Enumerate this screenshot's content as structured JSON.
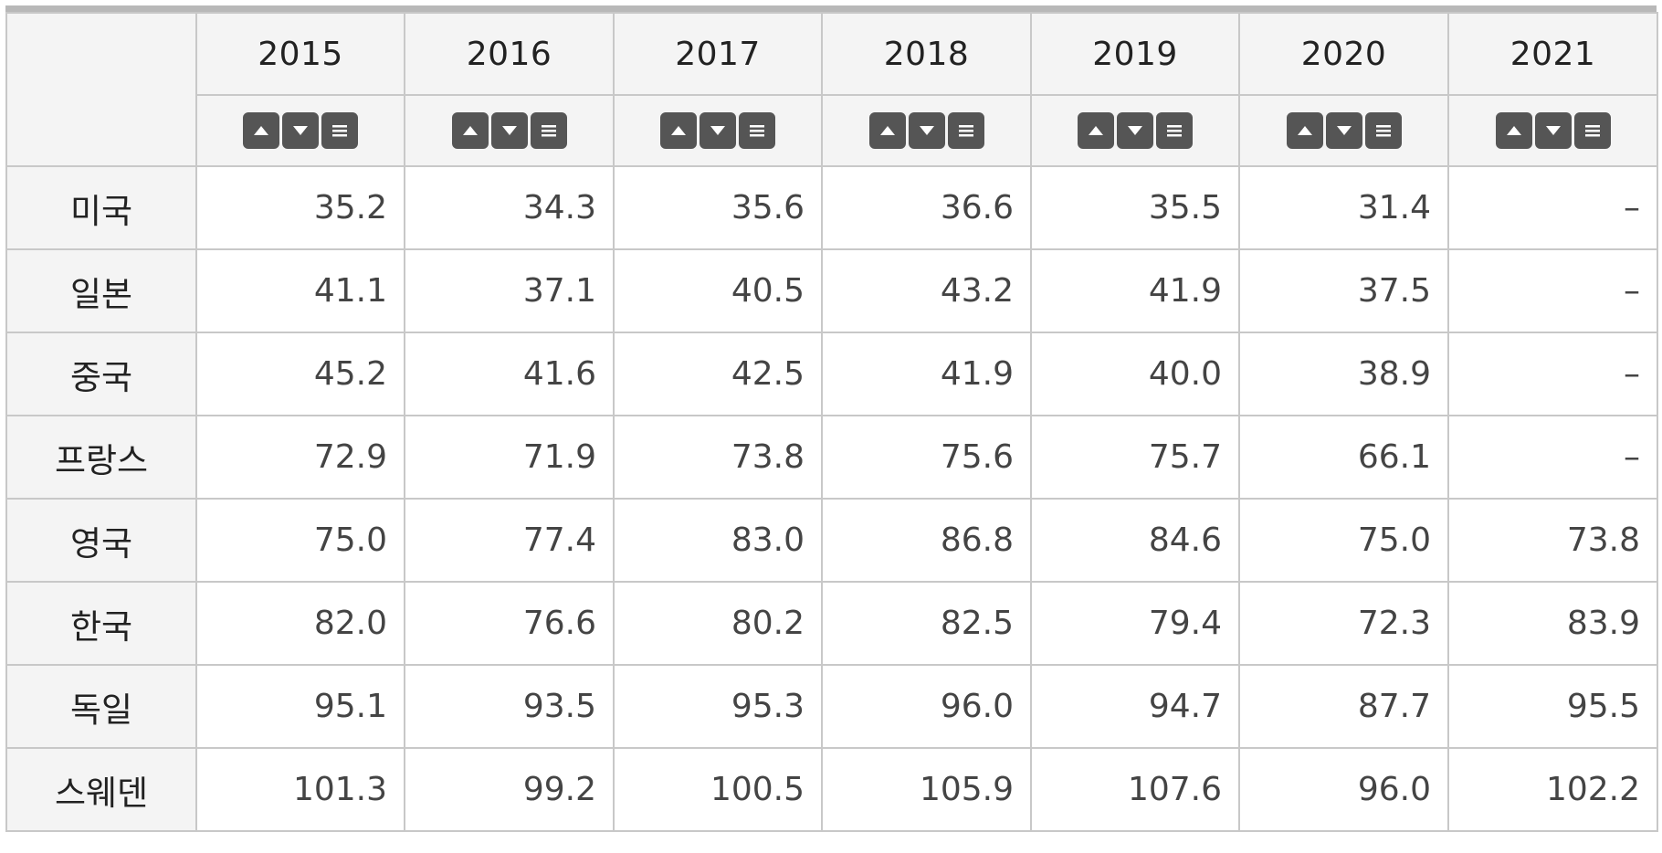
{
  "table": {
    "years": [
      "2015",
      "2016",
      "2017",
      "2018",
      "2019",
      "2020",
      "2021"
    ],
    "sort_controls": {
      "ascending_icon": "triangle-up-icon",
      "descending_icon": "triangle-down-icon",
      "menu_icon": "hamburger-menu-icon"
    },
    "rows": [
      {
        "label": "미국",
        "values": [
          "35.2",
          "34.3",
          "35.6",
          "36.6",
          "35.5",
          "31.4",
          "–"
        ]
      },
      {
        "label": "일본",
        "values": [
          "41.1",
          "37.1",
          "40.5",
          "43.2",
          "41.9",
          "37.5",
          "–"
        ]
      },
      {
        "label": "중국",
        "values": [
          "45.2",
          "41.6",
          "42.5",
          "41.9",
          "40.0",
          "38.9",
          "–"
        ]
      },
      {
        "label": "프랑스",
        "values": [
          "72.9",
          "71.9",
          "73.8",
          "75.6",
          "75.7",
          "66.1",
          "–"
        ]
      },
      {
        "label": "영국",
        "values": [
          "75.0",
          "77.4",
          "83.0",
          "86.8",
          "84.6",
          "75.0",
          "73.8"
        ]
      },
      {
        "label": "한국",
        "values": [
          "82.0",
          "76.6",
          "80.2",
          "82.5",
          "79.4",
          "72.3",
          "83.9"
        ]
      },
      {
        "label": "독일",
        "values": [
          "95.1",
          "93.5",
          "95.3",
          "96.0",
          "94.7",
          "87.7",
          "95.5"
        ]
      },
      {
        "label": "스웨덴",
        "values": [
          "101.3",
          "99.2",
          "100.5",
          "105.9",
          "107.6",
          "96.0",
          "102.2"
        ]
      }
    ]
  },
  "colors": {
    "header_bg": "#f4f4f4",
    "border": "#c8c8c8",
    "button_bg": "#555555"
  }
}
